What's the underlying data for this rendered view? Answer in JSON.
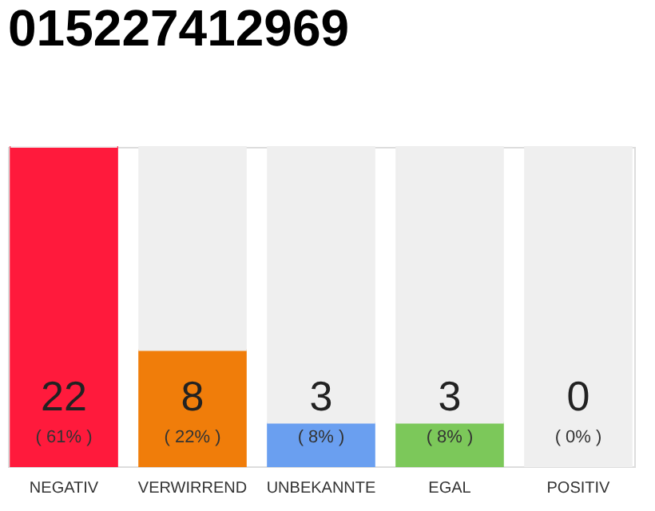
{
  "chart_data": {
    "type": "bar",
    "title": "015227412969",
    "stacked": true,
    "categories": [
      "NEGATIV",
      "VERWIRREND",
      "UNBEKANNTE",
      "EGAL",
      "POSITIV"
    ],
    "series": [
      {
        "colors": [
          "#ff1a3c",
          "#f07d0a",
          "#6a9ff0",
          "#7cc85a",
          "#2aaa4a"
        ],
        "values": [
          22,
          8,
          3,
          3,
          0
        ],
        "value_labels": [
          "22",
          "8",
          "3",
          "3",
          "0"
        ]
      },
      {
        "color": "#efefef",
        "values": [
          0,
          14,
          19,
          19,
          22
        ]
      }
    ],
    "annotations": [
      "( 61% )",
      "( 22% )",
      "( 8% )",
      "( 8% )",
      "( 0% )"
    ]
  }
}
